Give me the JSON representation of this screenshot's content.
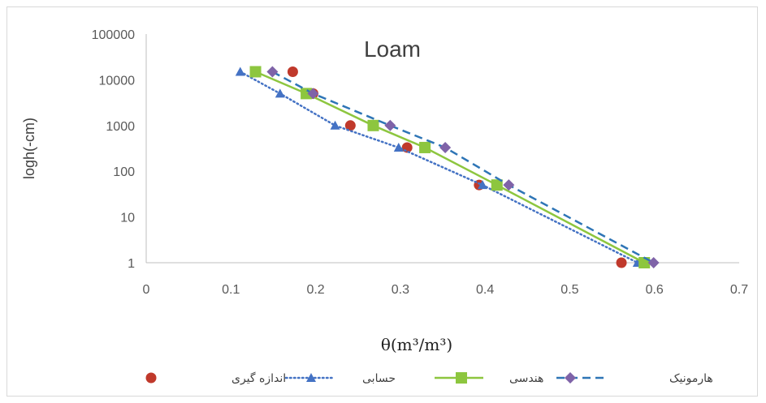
{
  "chart_data": {
    "type": "line",
    "title": "Loam",
    "xlabel": "θ(m³/m³)",
    "ylabel": "logh(-cm)",
    "x_scale": "linear",
    "y_scale": "log",
    "xlim": [
      0,
      0.7
    ],
    "ylim": [
      1,
      100000
    ],
    "x_ticks": [
      "0",
      "0.1",
      "0.2",
      "0.3",
      "0.4",
      "0.5",
      "0.6",
      "0.7"
    ],
    "y_ticks": [
      "1",
      "10",
      "100",
      "1000",
      "10000",
      "100000"
    ],
    "grid": false,
    "legend_position": "bottom",
    "series": [
      {
        "name": "اندازه گیری",
        "style": "markers",
        "marker": "circle",
        "color": "#c0392b",
        "points": [
          [
            0.173,
            15000
          ],
          [
            0.197,
            5000
          ],
          [
            0.241,
            1000
          ],
          [
            0.308,
            330
          ],
          [
            0.393,
            50
          ],
          [
            0.561,
            1
          ]
        ]
      },
      {
        "name": "حسابی",
        "style": "dotted",
        "marker": "triangle",
        "color": "#4472c4",
        "points": [
          [
            0.111,
            15000
          ],
          [
            0.158,
            5000
          ],
          [
            0.223,
            1000
          ],
          [
            0.298,
            330
          ],
          [
            0.397,
            50
          ],
          [
            0.58,
            1
          ]
        ]
      },
      {
        "name": "هندسی",
        "style": "solid",
        "marker": "square",
        "color": "#8dc63f",
        "points": [
          [
            0.129,
            15000
          ],
          [
            0.189,
            5000
          ],
          [
            0.268,
            1000
          ],
          [
            0.329,
            330
          ],
          [
            0.414,
            50
          ],
          [
            0.588,
            1
          ]
        ]
      },
      {
        "name": "هارمونیک",
        "style": "dashed",
        "marker": "diamond",
        "color": "#2e75b6",
        "marker_color": "#7f63a8",
        "points": [
          [
            0.149,
            15000
          ],
          [
            0.197,
            5000
          ],
          [
            0.288,
            1000
          ],
          [
            0.353,
            330
          ],
          [
            0.428,
            50
          ],
          [
            0.599,
            1
          ]
        ]
      }
    ]
  }
}
